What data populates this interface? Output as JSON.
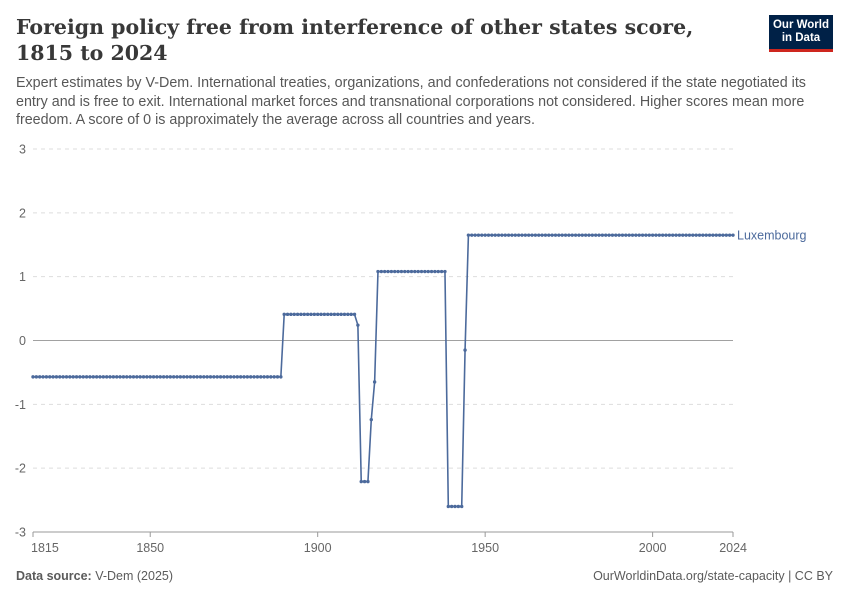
{
  "header": {
    "title": "Foreign policy free from interference of other states score, 1815 to 2024",
    "subtitle": "Expert estimates by V-Dem. International treaties, organizations, and confederations not considered if the state negotiated its entry and is free to exit. International market forces and transnational corporations not considered. Higher scores mean more freedom. A score of 0 is approximately the average across all countries and years."
  },
  "logo": {
    "line1": "Our World",
    "line2": "in Data",
    "bg_color": "#002147",
    "accent_color": "#ce261e"
  },
  "footer": {
    "source_label": "Data source:",
    "source_value": "V-Dem (2025)",
    "url": "OurWorldinData.org/state-capacity | CC BY"
  },
  "chart_data": {
    "type": "line",
    "title": "Foreign policy free from interference of other states score, 1815 to 2024",
    "xlabel": "",
    "ylabel": "",
    "xlim": [
      1815,
      2024
    ],
    "ylim": [
      -3,
      3
    ],
    "x_ticks": [
      1815,
      1850,
      1900,
      1950,
      2000,
      2024
    ],
    "y_ticks": [
      -3,
      -2,
      -1,
      0,
      1,
      2,
      3
    ],
    "grid": true,
    "legend": "end-label",
    "series": [
      {
        "name": "Luxembourg",
        "color": "#4c6a9c",
        "segments": [
          {
            "from": 1815,
            "to": 1889,
            "value": -0.57
          },
          {
            "from": 1890,
            "to": 1911,
            "value": 0.41
          },
          {
            "from": 1912,
            "to": 1912,
            "value": 0.24
          },
          {
            "from": 1913,
            "to": 1915,
            "value": -2.21
          },
          {
            "from": 1916,
            "to": 1916,
            "value": -1.24
          },
          {
            "from": 1917,
            "to": 1917,
            "value": -0.65
          },
          {
            "from": 1918,
            "to": 1938,
            "value": 1.08
          },
          {
            "from": 1939,
            "to": 1943,
            "value": -2.6
          },
          {
            "from": 1944,
            "to": 1944,
            "value": -0.15
          },
          {
            "from": 1945,
            "to": 2024,
            "value": 1.65
          }
        ]
      }
    ]
  }
}
